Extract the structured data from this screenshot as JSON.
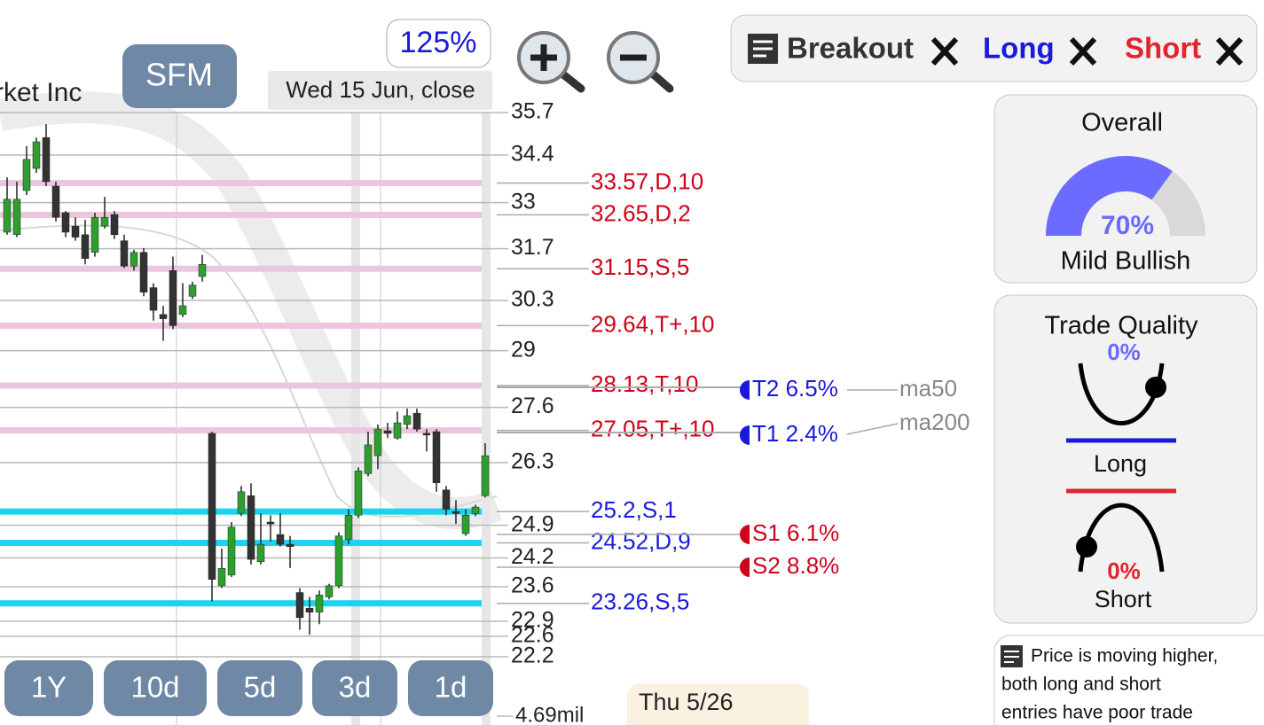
{
  "app": {
    "symbol": "SFM",
    "zoom": "125%",
    "date": "Wed 15 Jun, close",
    "hover_date": "Thu 5/26",
    "timeframes": [
      "1Y",
      "10d",
      "5d",
      "3d",
      "1d"
    ]
  },
  "filters": {
    "breakout": "Breakout",
    "long": "Long",
    "short": "Short"
  },
  "overall": {
    "title": "Overall",
    "value": 70,
    "value_label": "70%",
    "verdict": "Mild Bullish",
    "color": "#6b6bff"
  },
  "trade_quality": {
    "title": "Trade Quality",
    "long_value": 0,
    "long_label": "0%",
    "long": "Long",
    "short_value": 0,
    "short_label": "0%",
    "short": "Short"
  },
  "summary": {
    "lines": [
      "Price is moving higher,",
      "both long and short",
      "entries have poor trade"
    ]
  },
  "chart_data": {
    "type": "candlestick",
    "title": "rket Inc",
    "ylim": [
      22.2,
      35.7
    ],
    "log_scale": true,
    "grid": true,
    "yticks": [
      35.7,
      34.4,
      33,
      31.7,
      30.3,
      29,
      27.6,
      26.3,
      24.9,
      24.2,
      23.6,
      22.9,
      22.6,
      22.2
    ],
    "up_color": "#2e9e2e",
    "down_color": "#333333",
    "open": [
      32.16,
      32.09,
      33.35,
      34.0,
      34.93,
      33.48,
      32.71,
      32.33,
      32.09,
      31.6,
      32.33,
      32.66,
      31.92,
      31.22,
      31.6,
      30.64,
      29.93,
      31.1,
      29.93,
      30.41,
      30.94,
      26.98,
      23.62,
      23.84,
      25.16,
      25.55,
      24.12,
      24.97,
      24.7,
      24.49,
      23.48,
      23.16,
      23.08,
      23.39,
      23.62,
      24.59,
      25.12,
      26.05,
      26.46,
      27.04,
      26.87,
      27.19,
      27.46,
      26.98,
      27.02,
      25.68,
      25.2,
      24.72,
      25.16,
      25.55
    ],
    "high": [
      33.74,
      33.61,
      34.67,
      34.93,
      35.34,
      33.61,
      32.76,
      32.58,
      32.51,
      32.71,
      33.17,
      32.76,
      32.09,
      31.67,
      31.72,
      30.76,
      30.16,
      31.48,
      30.76,
      30.8,
      31.53,
      27.02,
      24.4,
      24.97,
      25.77,
      25.83,
      25.16,
      25.12,
      25.16,
      24.67,
      23.57,
      23.39,
      23.52,
      23.66,
      24.75,
      25.25,
      26.19,
      27.02,
      27.19,
      27.23,
      27.5,
      27.57,
      27.57,
      27.08,
      27.08,
      25.77,
      25.45,
      25.25,
      25.35,
      26.75
    ],
    "low": [
      32.09,
      32.02,
      33.22,
      33.87,
      33.48,
      32.46,
      32.02,
      31.92,
      31.27,
      31.48,
      32.26,
      31.97,
      31.17,
      31.1,
      30.41,
      29.77,
      29.25,
      29.55,
      29.86,
      30.34,
      30.8,
      23.3,
      23.57,
      23.8,
      25.1,
      24.06,
      24.06,
      24.55,
      24.44,
      23.99,
      22.73,
      22.63,
      22.84,
      23.34,
      23.57,
      24.49,
      25.06,
      25.99,
      26.15,
      26.87,
      26.83,
      27.08,
      27.02,
      26.56,
      25.64,
      25.12,
      24.93,
      24.67,
      25.1,
      25.51
    ],
    "close": [
      33.1,
      33.1,
      34.27,
      34.8,
      33.61,
      32.58,
      32.16,
      32.02,
      31.43,
      32.58,
      32.58,
      32.09,
      31.22,
      31.6,
      30.52,
      30.04,
      29.82,
      29.64,
      30.16,
      30.71,
      31.27,
      23.75,
      23.98,
      24.86,
      25.64,
      24.17,
      24.49,
      24.93,
      24.49,
      24.44,
      22.97,
      23.08,
      23.43,
      23.62,
      24.67,
      25.12,
      26.11,
      26.71,
      27.08,
      26.98,
      27.23,
      27.4,
      27.08,
      26.94,
      25.84,
      25.25,
      25.16,
      25.12,
      25.3,
      26.46
    ],
    "levels": [
      {
        "value": 33.57,
        "label": "33.57,D,10",
        "color": "#d0021b",
        "band_color": "#ebc6dc"
      },
      {
        "value": 32.65,
        "label": "32.65,D,2",
        "color": "#d0021b",
        "band_color": "#ebc6dc"
      },
      {
        "value": 31.15,
        "label": "31.15,S,5",
        "color": "#d0021b",
        "band_color": "#ebc6dc"
      },
      {
        "value": 29.64,
        "label": "29.64,T+,10",
        "color": "#d0021b",
        "band_color": "#ebc6dc"
      },
      {
        "value": 28.13,
        "label": "28.13,T,10",
        "color": "#d0021b",
        "band_color": "#ebc6dc"
      },
      {
        "value": 27.05,
        "label": "27.05,T+,10",
        "color": "#d0021b",
        "band_color": "#ebc6dc"
      },
      {
        "value": 25.2,
        "label": "25.2,S,1",
        "color": "#1a1adc",
        "band_color": "#1ad4f0"
      },
      {
        "value": 24.52,
        "label": "24.52,D,9",
        "color": "#1a1adc",
        "band_color": "#1ad4f0"
      },
      {
        "value": 23.26,
        "label": "23.26,S,5",
        "color": "#1a1adc",
        "band_color": "#1ad4f0"
      }
    ],
    "targets": [
      {
        "label": "T2 6.5%",
        "color": "#1a1adc"
      },
      {
        "label": "T1 2.4%",
        "color": "#1a1adc"
      },
      {
        "label": "S1 6.1%",
        "color": "#d0021b"
      },
      {
        "label": "S2 8.8%",
        "color": "#d0021b"
      }
    ],
    "ma_labels": [
      "ma50",
      "ma200"
    ],
    "volume_label": "4.69mil"
  }
}
